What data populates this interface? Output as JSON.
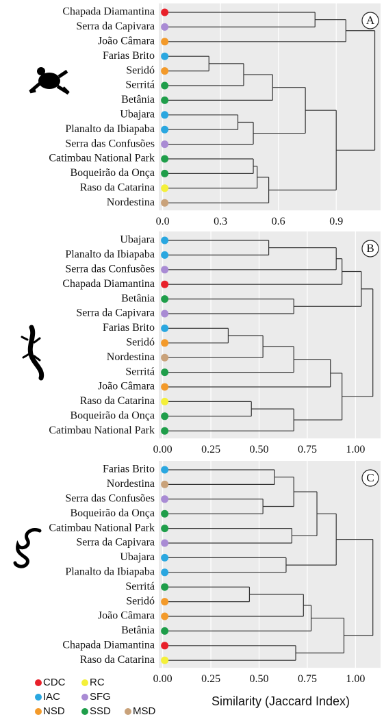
{
  "chart_data": [
    {
      "type": "dendrogram",
      "panel": "A",
      "leaves": [
        "Chapada Diamantina",
        "Serra da Capivara",
        "João Câmara",
        "Farias Brito",
        "Seridó",
        "Serritá",
        "Betânia",
        "Ubajara",
        "Planalto da Ibiapaba",
        "Serra das Confusões",
        "Catimbau National Park",
        "Boqueirão da Onça",
        "Raso da Catarina",
        "Nordestina"
      ],
      "colors": [
        "#e8202a",
        "#a98bd4",
        "#f39a2a",
        "#2aa7e0",
        "#f39a2a",
        "#1f9e4a",
        "#1f9e4a",
        "#2aa7e0",
        "#2aa7e0",
        "#a98bd4",
        "#1f9e4a",
        "#1f9e4a",
        "#f4f03a",
        "#c9a27a"
      ],
      "merges": [
        {
          "left": 0,
          "right": 1,
          "height": 0.79
        },
        {
          "left": 14,
          "right": 2,
          "height": 0.95
        },
        {
          "left": 3,
          "right": 4,
          "height": 0.24
        },
        {
          "left": 16,
          "right": 5,
          "height": 0.42
        },
        {
          "left": 17,
          "right": 6,
          "height": 0.57
        },
        {
          "left": 7,
          "right": 8,
          "height": 0.39
        },
        {
          "left": 19,
          "right": 9,
          "height": 0.47
        },
        {
          "left": 18,
          "right": 20,
          "height": 0.74
        },
        {
          "left": 10,
          "right": 11,
          "height": 0.47
        },
        {
          "left": 22,
          "right": 12,
          "height": 0.49
        },
        {
          "left": 23,
          "right": 13,
          "height": 0.55
        },
        {
          "left": 21,
          "right": 24,
          "height": 0.9
        },
        {
          "left": 15,
          "right": 25,
          "height": 1.1
        }
      ],
      "xlim": [
        -0.02,
        1.13
      ],
      "xticks": [
        {
          "value": 0,
          "label": "0.0"
        },
        0.3,
        0.6,
        0.9
      ],
      "grid": true
    },
    {
      "type": "dendrogram",
      "panel": "B",
      "leaves": [
        "Ubajara",
        "Planalto da Ibiapaba",
        "Serra das Confusões",
        "Chapada Diamantina",
        "Betânia",
        "Serra da Capivara",
        "Farias Brito",
        "Seridó",
        "Nordestina",
        "Serritá",
        "João Câmara",
        "Raso da Catarina",
        "Boqueirão da Onça",
        "Catimbau National Park"
      ],
      "colors": [
        "#2aa7e0",
        "#2aa7e0",
        "#a98bd4",
        "#e8202a",
        "#1f9e4a",
        "#a98bd4",
        "#2aa7e0",
        "#f39a2a",
        "#c9a27a",
        "#1f9e4a",
        "#f39a2a",
        "#f4f03a",
        "#1f9e4a",
        "#1f9e4a"
      ],
      "merges": [
        {
          "left": 0,
          "right": 1,
          "height": 0.55
        },
        {
          "left": 14,
          "right": 2,
          "height": 0.9
        },
        {
          "left": 15,
          "right": 3,
          "height": 0.93
        },
        {
          "left": 4,
          "right": 5,
          "height": 0.68
        },
        {
          "left": 16,
          "right": 17,
          "height": 1.03
        },
        {
          "left": 6,
          "right": 7,
          "height": 0.34
        },
        {
          "left": 19,
          "right": 8,
          "height": 0.52
        },
        {
          "left": 20,
          "right": 9,
          "height": 0.68
        },
        {
          "left": 21,
          "right": 10,
          "height": 0.87
        },
        {
          "left": 11,
          "right": 12,
          "height": 0.46
        },
        {
          "left": 23,
          "right": 13,
          "height": 0.68
        },
        {
          "left": 22,
          "right": 24,
          "height": 0.93
        },
        {
          "left": 18,
          "right": 25,
          "height": 1.09
        }
      ],
      "xlim": [
        -0.02,
        1.13
      ],
      "xticks": [
        {
          "value": 0,
          "label": "0.00"
        },
        0.25,
        {
          "value": 0.5,
          "label": "0.50"
        },
        0.75,
        {
          "value": 1,
          "label": "1.00"
        }
      ],
      "grid": true
    },
    {
      "type": "dendrogram",
      "panel": "C",
      "leaves": [
        "Farias Brito",
        "Nordestina",
        "Serra das Confusões",
        "Boqueirão da Onça",
        "Catimbau National Park",
        "Serra da Capivara",
        "Ubajara",
        "Planalto da Ibiapaba",
        "Serritá",
        "Seridó",
        "João Câmara",
        "Betânia",
        "Chapada Diamantina",
        "Raso da Catarina"
      ],
      "colors": [
        "#2aa7e0",
        "#c9a27a",
        "#a98bd4",
        "#1f9e4a",
        "#1f9e4a",
        "#a98bd4",
        "#2aa7e0",
        "#2aa7e0",
        "#1f9e4a",
        "#f39a2a",
        "#f39a2a",
        "#1f9e4a",
        "#e8202a",
        "#f4f03a"
      ],
      "merges": [
        {
          "left": 0,
          "right": 1,
          "height": 0.58
        },
        {
          "left": 2,
          "right": 3,
          "height": 0.52
        },
        {
          "left": 14,
          "right": 15,
          "height": 0.68
        },
        {
          "left": 4,
          "right": 5,
          "height": 0.67
        },
        {
          "left": 16,
          "right": 17,
          "height": 0.8
        },
        {
          "left": 6,
          "right": 7,
          "height": 0.64
        },
        {
          "left": 18,
          "right": 19,
          "height": 0.9
        },
        {
          "left": 8,
          "right": 9,
          "height": 0.45
        },
        {
          "left": 21,
          "right": 10,
          "height": 0.73
        },
        {
          "left": 22,
          "right": 11,
          "height": 0.77
        },
        {
          "left": 12,
          "right": 13,
          "height": 0.69
        },
        {
          "left": 23,
          "right": 24,
          "height": 0.94
        },
        {
          "left": 20,
          "right": 25,
          "height": 1.09
        }
      ],
      "xlim": [
        -0.02,
        1.13
      ],
      "xticks": [
        {
          "value": 0,
          "label": "0.00"
        },
        0.25,
        {
          "value": 0.5,
          "label": "0.50"
        },
        0.75,
        {
          "value": 1,
          "label": "1.00"
        }
      ],
      "grid": true
    }
  ],
  "legend": [
    {
      "label": "CDC",
      "color": "#e8202a"
    },
    {
      "label": "RC",
      "color": "#f4f03a"
    },
    {
      "label": "IAC",
      "color": "#2aa7e0"
    },
    {
      "label": "SFG",
      "color": "#a98bd4"
    },
    {
      "label": "NSD",
      "color": "#f39a2a"
    },
    {
      "label": "SSD",
      "color": "#1f9e4a"
    },
    {
      "label": "MSD",
      "color": "#c9a27a"
    }
  ],
  "xlabel": "Similarity (Jaccard Index)"
}
